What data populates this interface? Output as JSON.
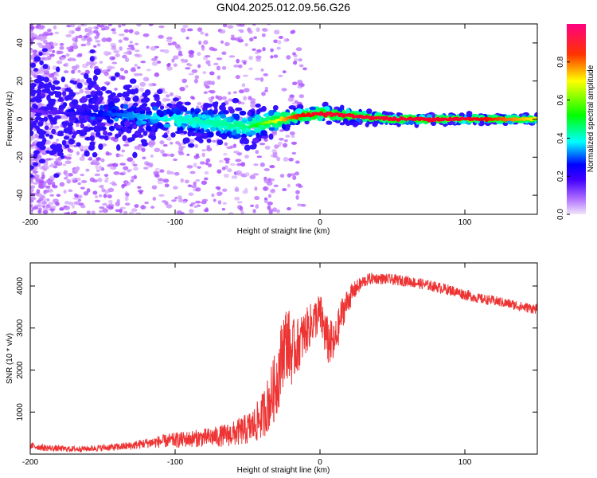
{
  "title": "GN04.2025.012.09.56.G26",
  "chart_data": [
    {
      "type": "heatmap",
      "title": "GN04.2025.012.09.56.G26",
      "xlabel": "Height of straight line (km)",
      "ylabel": "Frequency (Hz)",
      "xlim": [
        -200,
        150
      ],
      "ylim": [
        -50,
        50
      ],
      "xticks": [
        -200,
        -100,
        0,
        100
      ],
      "yticks": [
        -40,
        -20,
        0,
        20,
        40
      ],
      "colorbar": {
        "label": "Normalized spectral amplitude",
        "range": [
          0.0,
          1.0
        ],
        "ticks": [
          "0.0",
          "0.2",
          "0.4",
          "0.6",
          "0.8"
        ],
        "colormap": [
          "#f2e6fa",
          "#9b30ff",
          "#0000ff",
          "#00ffff",
          "#00ff00",
          "#ffff00",
          "#ff0000",
          "#ff0080"
        ]
      },
      "ridge": {
        "description_points": [
          {
            "x": -200,
            "freq_center": 4,
            "spread": 15,
            "amplitude": 0.1
          },
          {
            "x": -140,
            "freq_center": 2,
            "spread": 8,
            "amplitude": 0.3
          },
          {
            "x": -100,
            "freq_center": 0,
            "spread": 5,
            "amplitude": 0.4
          },
          {
            "x": -50,
            "freq_center": -4,
            "spread": 5,
            "amplitude": 0.45
          },
          {
            "x": -20,
            "freq_center": 1,
            "spread": 2,
            "amplitude": 0.8
          },
          {
            "x": 0,
            "freq_center": 3,
            "spread": 2,
            "amplitude": 0.9
          },
          {
            "x": 50,
            "freq_center": 0,
            "spread": 1,
            "amplitude": 0.9
          },
          {
            "x": 100,
            "freq_center": 0,
            "spread": 1,
            "amplitude": 0.9
          },
          {
            "x": 150,
            "freq_center": 0,
            "spread": 1,
            "amplitude": 0.7
          }
        ]
      }
    },
    {
      "type": "line",
      "xlabel": "Height of straight line (km)",
      "ylabel": "SNR (10 * v/v)",
      "xlim": [
        -200,
        150
      ],
      "ylim": [
        0,
        4550
      ],
      "xticks": [
        -200,
        -100,
        0,
        100
      ],
      "yticks": [
        1000,
        2000,
        3000,
        4000
      ],
      "series": [
        {
          "name": "SNR",
          "color": "#ee3333",
          "x": [
            -200,
            -190,
            -180,
            -170,
            -160,
            -150,
            -140,
            -130,
            -120,
            -110,
            -100,
            -90,
            -80,
            -70,
            -60,
            -50,
            -45,
            -40,
            -35,
            -30,
            -27,
            -25,
            -22,
            -20,
            -15,
            -10,
            -5,
            0,
            5,
            10,
            15,
            20,
            25,
            30,
            35,
            40,
            50,
            60,
            70,
            80,
            90,
            100,
            110,
            120,
            130,
            140,
            150
          ],
          "values": [
            200,
            150,
            130,
            120,
            130,
            150,
            170,
            200,
            260,
            300,
            330,
            360,
            390,
            420,
            480,
            600,
            700,
            900,
            1250,
            1700,
            2200,
            2600,
            2700,
            2400,
            2600,
            2900,
            3150,
            3350,
            2700,
            2600,
            3350,
            3700,
            3950,
            4100,
            4180,
            4180,
            4150,
            4120,
            4050,
            3980,
            3900,
            3800,
            3700,
            3650,
            3580,
            3500,
            3450
          ],
          "noise": [
            80,
            80,
            70,
            70,
            70,
            80,
            90,
            100,
            120,
            150,
            180,
            200,
            220,
            250,
            300,
            380,
            450,
            550,
            700,
            850,
            900,
            900,
            900,
            800,
            650,
            550,
            500,
            500,
            600,
            500,
            400,
            300,
            200,
            150,
            140,
            130,
            130,
            130,
            130,
            130,
            130,
            130,
            120,
            120,
            120,
            120,
            120
          ]
        }
      ]
    }
  ]
}
